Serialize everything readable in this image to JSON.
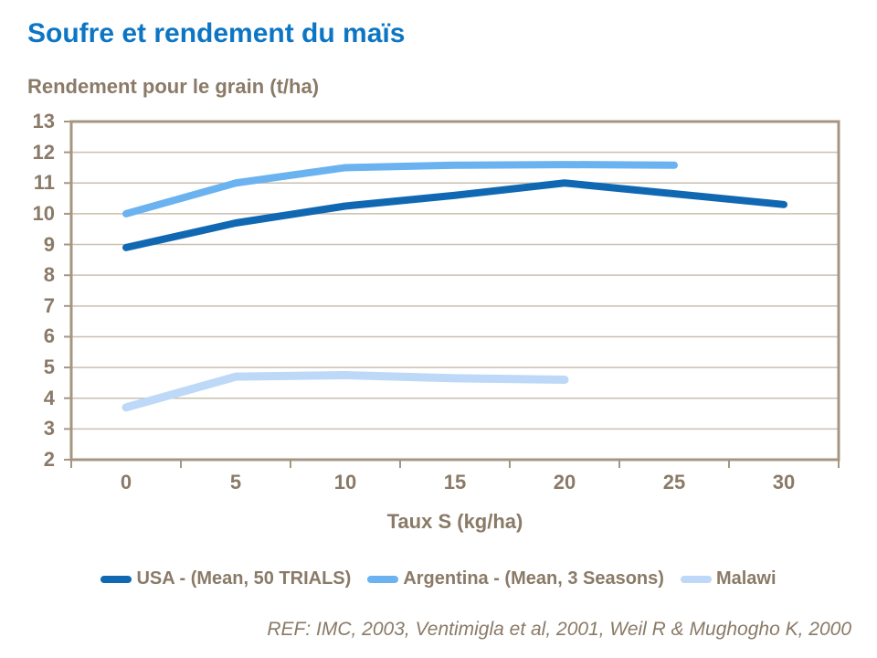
{
  "page": {
    "footer": "REF: IMC,  2003, Ventimigla et al, 2001, Weil R & Mughogho K, 2000"
  },
  "colors": {
    "title_blue": "#0d76c4",
    "text_brown": "#8a7a67",
    "grid": "#c9bfb1",
    "axis": "#a59682"
  },
  "chart_data": {
    "type": "line",
    "title": "Soufre et rendement du maïs",
    "ylabel_above": "Rendement pour le grain (t/ha)",
    "xlabel": "Taux S (kg/ha)",
    "categories": [
      0,
      5,
      10,
      15,
      20,
      25,
      30
    ],
    "series": [
      {
        "name": "USA - (Mean, 50 TRIALS)",
        "color": "#1168b2",
        "stroke_width": 8,
        "values": [
          8.9,
          9.7,
          10.25,
          10.6,
          11.0,
          null,
          10.3
        ]
      },
      {
        "name": "Argentina - (Mean, 3 Seasons)",
        "color": "#6ab2f0",
        "stroke_width": 8,
        "values": [
          10.0,
          11.0,
          11.5,
          11.58,
          11.6,
          11.58,
          null
        ]
      },
      {
        "name": "Malawi",
        "color": "#bdd9f7",
        "stroke_width": 9,
        "values": [
          3.7,
          4.7,
          4.75,
          4.65,
          4.6,
          null,
          null
        ]
      }
    ],
    "ylim": [
      2,
      13
    ],
    "ytick_step": 1,
    "grid": "horizontal",
    "legend_position": "bottom"
  }
}
